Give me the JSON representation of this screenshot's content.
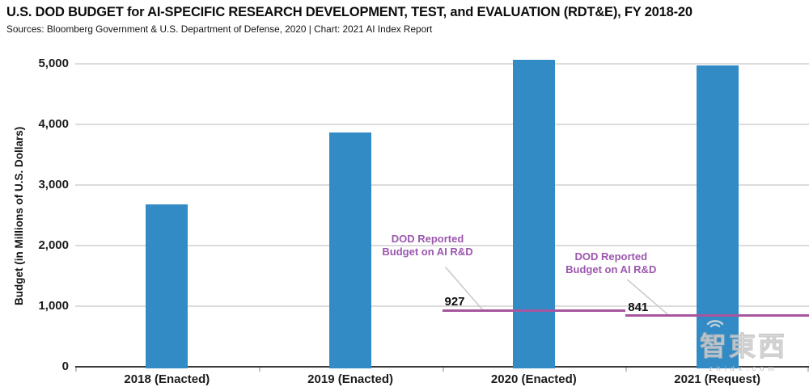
{
  "chart_data": {
    "type": "bar",
    "title": "U.S. DOD BUDGET for AI-SPECIFIC RESEARCH DEVELOPMENT, TEST, and EVALUATION (RDT&E), FY 2018-20",
    "subtitle": "Sources: Bloomberg Government & U.S. Department of Defense, 2020 | Chart: 2021 AI Index Report",
    "ylabel": "Budget (in Millions of U.S. Dollars)",
    "xlabel": "",
    "categories": [
      "2018 (Enacted)",
      "2019 (Enacted)",
      "2020 (Enacted)",
      "2021 (Request)"
    ],
    "values": [
      2680,
      3870,
      5070,
      4975
    ],
    "ylim": [
      0,
      5000
    ],
    "yticks": [
      0,
      1000,
      2000,
      3000,
      4000,
      5000
    ],
    "ytick_labels": [
      "0",
      "1,000",
      "2,000",
      "3,000",
      "4,000",
      "5,000"
    ],
    "grid": true,
    "legend": "none",
    "bar_color": "#338bc5",
    "gridline_color": "#dcdcdc",
    "axis_color": "#3a3a3a",
    "annotations": [
      {
        "label": "DOD Reported Budget on AI R&D",
        "label_lines": [
          "DOD Reported",
          "Budget on AI R&D"
        ],
        "value": 927,
        "value_label": "927",
        "span_category": "2020 (Enacted)",
        "span_category_index": 2,
        "line_color": "#a6569f",
        "text_color": "#9b57ad",
        "leader_color": "#c9c9c9"
      },
      {
        "label": "DOD Reported Budget on AI R&D",
        "label_lines": [
          "DOD Reported",
          "Budget on AI R&D"
        ],
        "value": 841,
        "value_label": "841",
        "span_category": "2021 (Request)",
        "span_category_index": 3,
        "line_color": "#a6569f",
        "text_color": "#9b57ad",
        "leader_color": "#c9c9c9"
      }
    ]
  },
  "watermark": {
    "logo_text": "智東西",
    "domain_text": "zhidx.com"
  }
}
